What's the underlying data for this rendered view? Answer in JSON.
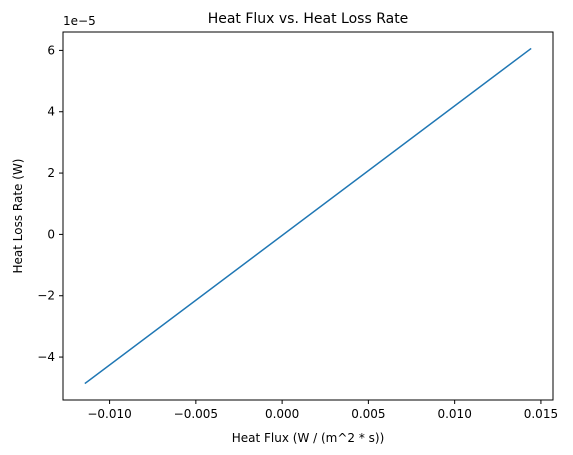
{
  "chart_data": {
    "type": "line",
    "title": "Heat Flux vs. Heat Loss Rate",
    "xlabel": "Heat Flux (W / (m^2 * s))",
    "ylabel": "Heat Loss Rate (W)",
    "y_offset_label": "1e−5",
    "xlim": [
      -0.0127,
      0.0157
    ],
    "ylim": [
      -5.4,
      6.6
    ],
    "x_ticks": [
      -0.01,
      -0.005,
      0.0,
      0.005,
      0.01,
      0.015
    ],
    "x_tick_labels": [
      "−0.010",
      "−0.005",
      "0.000",
      "0.005",
      "0.010",
      "0.015"
    ],
    "y_ticks": [
      -4,
      -2,
      0,
      2,
      4,
      6
    ],
    "y_tick_labels": [
      "−4",
      "−2",
      "0",
      "2",
      "4",
      "6"
    ],
    "grid": false,
    "series": [
      {
        "color": "#1f77b4",
        "x": [
          -0.0114,
          0.0144
        ],
        "y": [
          -4.85,
          6.05
        ]
      }
    ]
  }
}
